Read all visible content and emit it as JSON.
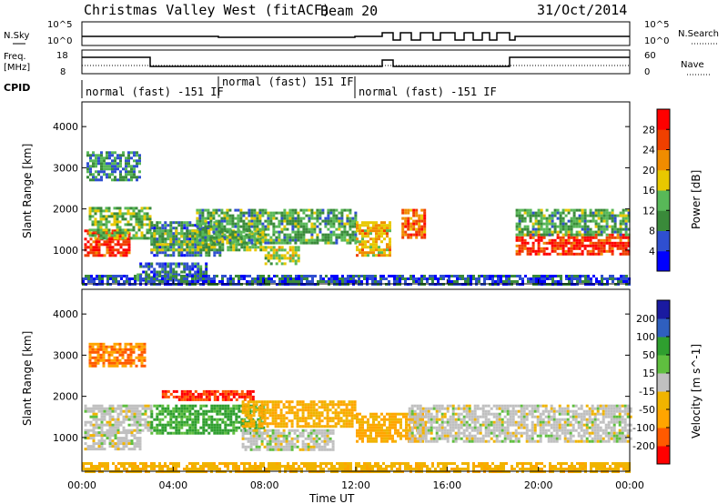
{
  "header": {
    "station": "Christmas Valley West (fitACF)",
    "beam": "Beam 20",
    "date": "31/Oct/2014"
  },
  "top_panel": {
    "nsky_label": "N.Sky",
    "nsky_ticks": [
      "10^5",
      "10^0"
    ],
    "nsearch_ticks": [
      "10^5",
      "10^0"
    ],
    "nsearch_label": "N.Search",
    "freq_label_line1": "Freq.",
    "freq_label_line2": "[MHz]",
    "freq_ticks": [
      "18",
      "8"
    ],
    "nave_ticks": [
      "60",
      "0"
    ],
    "nave_label": "Nave",
    "cpid_label": "CPID",
    "cpid_segments": [
      "normal (fast) -151 IF",
      "normal (fast) 151 IF",
      "normal (fast) -151 IF"
    ]
  },
  "colors": {
    "power": [
      "#0000ff",
      "#2f4fd0",
      "#3a8a3a",
      "#58b858",
      "#e8c800",
      "#f08c00",
      "#f04000",
      "#ff0000"
    ],
    "velocity": [
      "#ff0000",
      "#ff5a00",
      "#ffa500",
      "#f0b400",
      "#c0c0c0",
      "#5fbf3f",
      "#2f9f2f",
      "#2f5fbf",
      "#1a1aa0"
    ]
  },
  "chart_data": [
    {
      "type": "heatmap",
      "title": "",
      "quantity": "Power",
      "ylabel": "Slant Range [km]",
      "xlabel": "",
      "ylim": [
        180,
        4600
      ],
      "yticks": [
        1000,
        2000,
        3000,
        4000
      ],
      "xlim_hours": [
        0,
        24
      ],
      "colorbar": {
        "label": "Power [dB]",
        "ticks": [
          4,
          8,
          12,
          16,
          20,
          24,
          28
        ],
        "range": [
          0,
          32
        ]
      },
      "bands": [
        {
          "t0": 0.1,
          "t1": 2.1,
          "r0": 850,
          "r1": 1500,
          "level": 28
        },
        {
          "t0": 0.3,
          "t1": 3.0,
          "r0": 1300,
          "r1": 2050,
          "level": 14
        },
        {
          "t0": 0.2,
          "t1": 2.5,
          "r0": 2700,
          "r1": 3400,
          "level": 10
        },
        {
          "t0": 2.4,
          "t1": 5.5,
          "r0": 300,
          "r1": 700,
          "level": 8
        },
        {
          "t0": 3.0,
          "t1": 6.0,
          "r0": 900,
          "r1": 1700,
          "level": 8
        },
        {
          "t0": 3.0,
          "t1": 8.0,
          "r0": 1000,
          "r1": 1500,
          "level": 14
        },
        {
          "t0": 5.0,
          "t1": 12.0,
          "r0": 1200,
          "r1": 2000,
          "level": 12
        },
        {
          "t0": 8.0,
          "t1": 9.5,
          "r0": 700,
          "r1": 1100,
          "level": 16
        },
        {
          "t0": 12.0,
          "t1": 13.5,
          "r0": 850,
          "r1": 1700,
          "level": 20
        },
        {
          "t0": 14.0,
          "t1": 15.0,
          "r0": 1300,
          "r1": 2000,
          "level": 24
        },
        {
          "t0": 19.0,
          "t1": 24.0,
          "r0": 900,
          "r1": 1400,
          "level": 28
        },
        {
          "t0": 19.0,
          "t1": 24.0,
          "r0": 1400,
          "r1": 2000,
          "level": 12
        },
        {
          "t0": 0.0,
          "t1": 24.0,
          "r0": 200,
          "r1": 400,
          "level": 6
        }
      ]
    },
    {
      "type": "heatmap",
      "title": "",
      "quantity": "Velocity",
      "ylabel": "Slant Range [km]",
      "xlabel": "Time UT",
      "ylim": [
        180,
        4600
      ],
      "yticks": [
        1000,
        2000,
        3000,
        4000
      ],
      "xlim_hours": [
        0,
        24
      ],
      "xticks": [
        "00:00",
        "04:00",
        "08:00",
        "12:00",
        "16:00",
        "20:00",
        "00:00"
      ],
      "colorbar": {
        "label": "Velocity [m s^-1]",
        "ticks": [
          -200,
          -100,
          -50,
          -15,
          15,
          50,
          100,
          200
        ]
      },
      "bands": [
        {
          "t0": 0.1,
          "t1": 3.0,
          "r0": 1200,
          "r1": 1800,
          "level": 0
        },
        {
          "t0": 0.1,
          "t1": 2.5,
          "r0": 700,
          "r1": 1150,
          "level": 0
        },
        {
          "t0": 0.3,
          "t1": 2.8,
          "r0": 2750,
          "r1": 3300,
          "level": -100
        },
        {
          "t0": 3.5,
          "t1": 7.5,
          "r0": 1900,
          "r1": 2150,
          "level": -200
        },
        {
          "t0": 3.0,
          "t1": 8.0,
          "r0": 1100,
          "r1": 1800,
          "level": 60
        },
        {
          "t0": 7.0,
          "t1": 12.0,
          "r0": 1300,
          "r1": 1900,
          "level": -50
        },
        {
          "t0": 7.0,
          "t1": 11.0,
          "r0": 700,
          "r1": 1200,
          "level": 0
        },
        {
          "t0": 12.0,
          "t1": 15.0,
          "r0": 900,
          "r1": 1600,
          "level": -50
        },
        {
          "t0": 14.3,
          "t1": 24.0,
          "r0": 900,
          "r1": 1800,
          "level": 0
        },
        {
          "t0": 0.0,
          "t1": 24.0,
          "r0": 200,
          "r1": 400,
          "level": -40
        }
      ]
    }
  ]
}
